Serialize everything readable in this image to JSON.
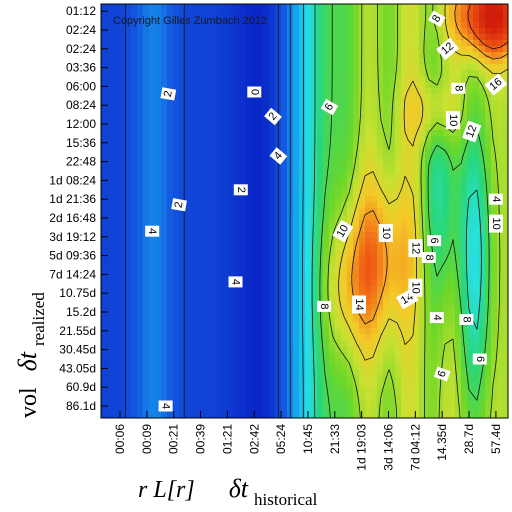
{
  "chart_data": {
    "type": "heatmap",
    "title": "",
    "copyright": "Copyright Gilles Zumbach 2012",
    "xlabel": {
      "prefix": "r L[r]",
      "delta": "δt",
      "subscript": "historical"
    },
    "ylabel": {
      "prefix": "vol",
      "delta": "δt",
      "subscript": "realized"
    },
    "x_ticks": [
      "00:06",
      "00:09",
      "00:21",
      "00:39",
      "01:21",
      "02:42",
      "05:24",
      "10:45",
      "21:33",
      "1d 19:03",
      "3d 14:06",
      "7d 04:12",
      "14.35d",
      "28.7d",
      "57.4d"
    ],
    "y_ticks": [
      "86.1d",
      "60.9d",
      "43.05d",
      "30.45d",
      "21.55d",
      "15.2d",
      "10.75d",
      "7d 14:24",
      "5d 09:36",
      "3d 19:12",
      "2d 16:48",
      "1d 21:36",
      "1d 08:24",
      "22:48",
      "15:36",
      "12:00",
      "08:24",
      "06:00",
      "03:36",
      "02:24",
      "02:24",
      "01:12"
    ],
    "contour_labels": [
      {
        "text": "2",
        "x": 1.8,
        "y": 16.6,
        "rot": -80
      },
      {
        "text": "0",
        "x": 5.0,
        "y": 16.7,
        "rot": 90
      },
      {
        "text": "2",
        "x": 5.7,
        "y": 15.4,
        "rot": -50
      },
      {
        "text": "4",
        "x": 5.9,
        "y": 13.3,
        "rot": -50
      },
      {
        "text": "6",
        "x": 7.8,
        "y": 15.9,
        "rot": -60
      },
      {
        "text": "8",
        "x": 11.8,
        "y": 20.6,
        "rot": -60
      },
      {
        "text": "12",
        "x": 12.2,
        "y": 19.0,
        "rot": -40
      },
      {
        "text": "8",
        "x": 12.6,
        "y": 16.9,
        "rot": 90
      },
      {
        "text": "12",
        "x": 13.1,
        "y": 14.6,
        "rot": -70
      },
      {
        "text": "16",
        "x": 14.3,
        "y": 17.1,
        "rot": -40
      },
      {
        "text": "10",
        "x": 12.4,
        "y": 15.2,
        "rot": 90
      },
      {
        "text": "2",
        "x": 2.2,
        "y": 10.7,
        "rot": -80
      },
      {
        "text": "2",
        "x": 4.5,
        "y": 11.5,
        "rot": 90
      },
      {
        "text": "4",
        "x": 1.2,
        "y": 9.3,
        "rot": 90
      },
      {
        "text": "4",
        "x": 4.3,
        "y": 6.6,
        "rot": 90
      },
      {
        "text": "10",
        "x": 8.3,
        "y": 9.3,
        "rot": -60
      },
      {
        "text": "10",
        "x": 9.9,
        "y": 9.2,
        "rot": 90
      },
      {
        "text": "12",
        "x": 11.0,
        "y": 8.4,
        "rot": 90
      },
      {
        "text": "8",
        "x": 11.5,
        "y": 7.9,
        "rot": 90
      },
      {
        "text": "6",
        "x": 11.7,
        "y": 8.8,
        "rot": 90
      },
      {
        "text": "10",
        "x": 14.2,
        "y": 9.7,
        "rot": 90
      },
      {
        "text": "4",
        "x": 14.6,
        "y": 11.0,
        "rot": 90
      },
      {
        "text": "8",
        "x": 7.6,
        "y": 5.3,
        "rot": 90
      },
      {
        "text": "14",
        "x": 8.9,
        "y": 5.4,
        "rot": 90
      },
      {
        "text": "14",
        "x": 10.7,
        "y": 5.7,
        "rot": -30
      },
      {
        "text": "10",
        "x": 11.0,
        "y": 6.3,
        "rot": 90
      },
      {
        "text": "4",
        "x": 11.8,
        "y": 4.7,
        "rot": 90
      },
      {
        "text": "8",
        "x": 12.9,
        "y": 4.6,
        "rot": 90
      },
      {
        "text": "6",
        "x": 12.0,
        "y": 1.7,
        "rot": -70
      },
      {
        "text": "6",
        "x": 13.4,
        "y": 2.5,
        "rot": 90
      },
      {
        "text": "4",
        "x": 1.7,
        "y": 0.0,
        "rot": 90
      }
    ]
  }
}
